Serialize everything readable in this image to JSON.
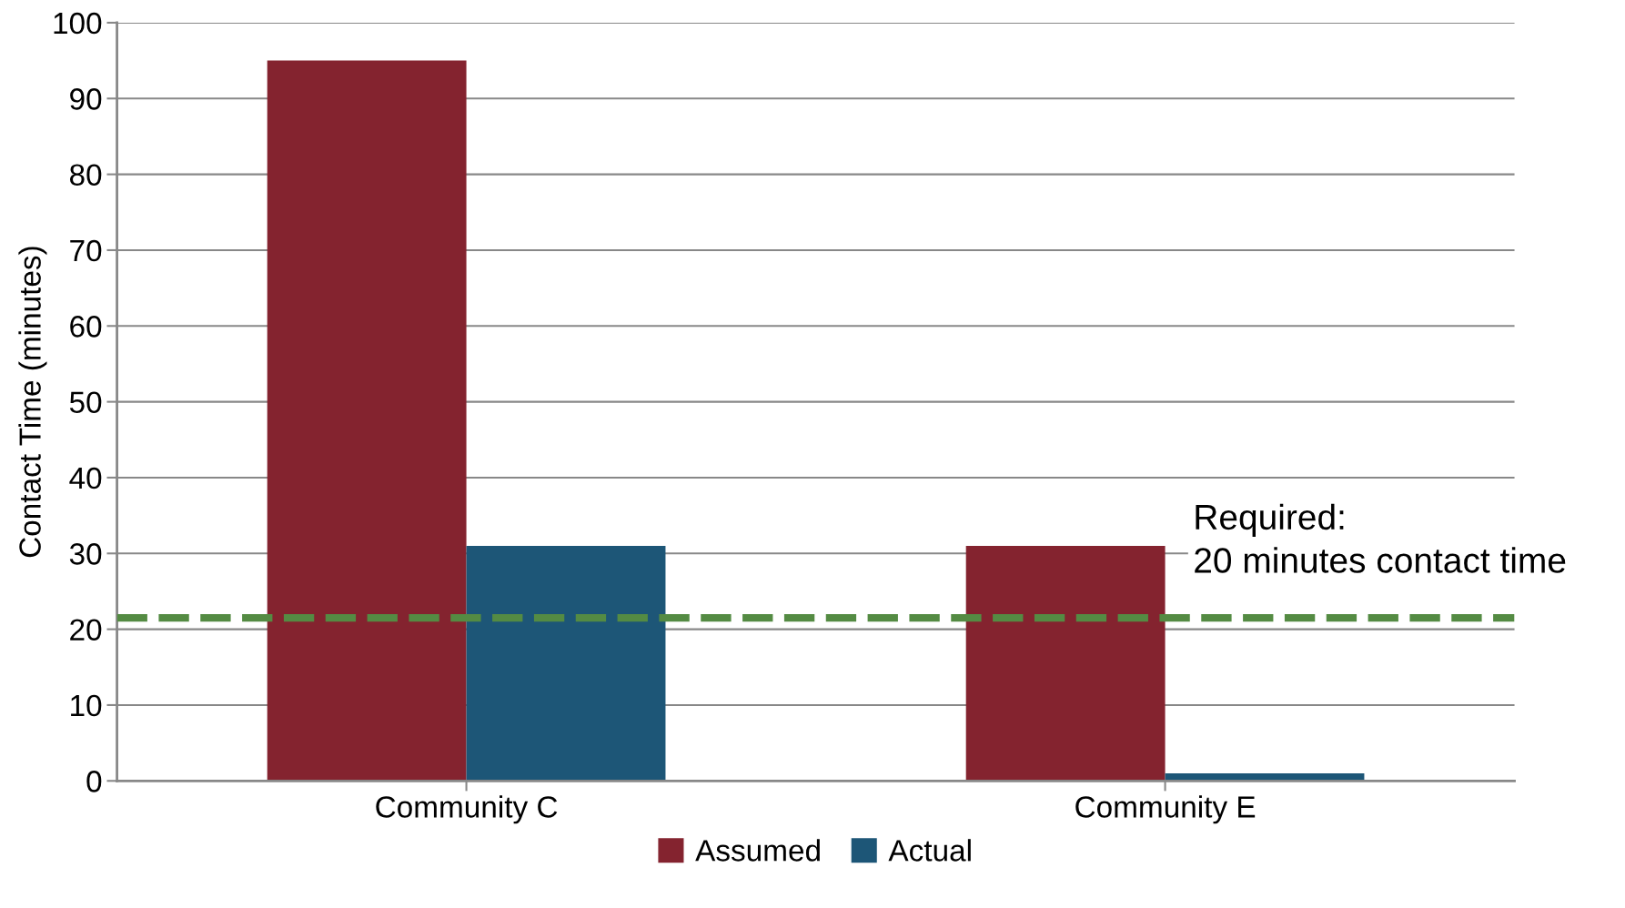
{
  "chart_data": {
    "type": "bar",
    "ylabel": "Contact Time (minutes)",
    "categories": [
      "Community C",
      "Community E"
    ],
    "series": [
      {
        "name": "Assumed",
        "color": "#84232f",
        "values": [
          95,
          31
        ]
      },
      {
        "name": "Actual",
        "color": "#1d5677",
        "values": [
          31,
          1
        ]
      }
    ],
    "ylim": [
      0,
      100
    ],
    "yticks": [
      0,
      10,
      20,
      30,
      40,
      50,
      60,
      70,
      80,
      90,
      100
    ],
    "grid": "y",
    "legend": "bottom",
    "annotations": [
      "Required:\n20 minutes contact time"
    ],
    "ref_lines": [
      {
        "axis": "y",
        "value": 21.5,
        "color": "#548b43",
        "line_style": "dashed"
      }
    ]
  }
}
